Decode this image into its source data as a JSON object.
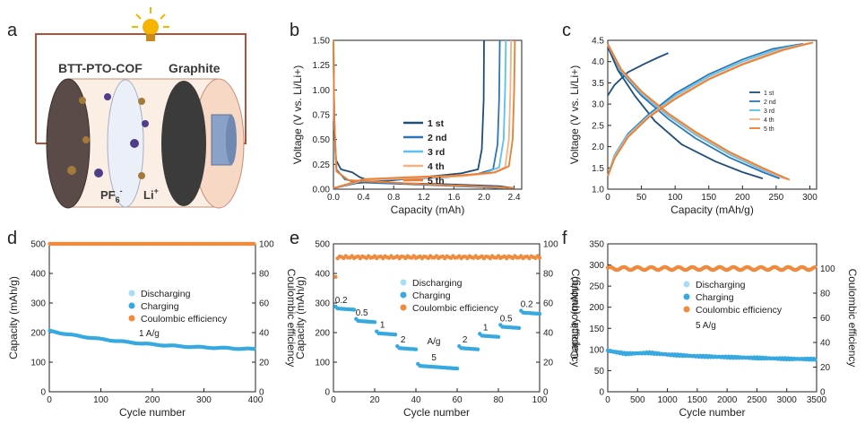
{
  "panel_labels": [
    "a",
    "b",
    "c",
    "d",
    "e",
    "f"
  ],
  "schematic": {
    "left_label": "BTT-PTO-COF",
    "right_label": "Graphite",
    "anion_label": "PF",
    "anion_sub": "6",
    "anion_sup": "-",
    "cation_label": "Li",
    "cation_sup": "+"
  },
  "chart_data": [
    {
      "panel": "b",
      "type": "line",
      "xlabel": "Capacity (mAh)",
      "ylabel": "Voltage (V vs. Li/Li+)",
      "xlim": [
        0,
        2.5
      ],
      "ylim": [
        0,
        1.5
      ],
      "xticks": [
        "0.0",
        "0.4",
        "0.8",
        "1.2",
        "1.6",
        "2.0",
        "2.4"
      ],
      "yticks": [
        "0.00",
        "0.25",
        "0.50",
        "0.75",
        "1.00",
        "1.25",
        "1.50"
      ],
      "legend_position": "center-right",
      "series": [
        {
          "name": "1 st",
          "color": "#1f4e79",
          "charge": [
            [
              0,
              0.01
            ],
            [
              0.3,
              0.06
            ],
            [
              0.8,
              0.09
            ],
            [
              1.3,
              0.13
            ],
            [
              1.7,
              0.16
            ],
            [
              1.92,
              0.2
            ],
            [
              1.97,
              0.4
            ],
            [
              1.995,
              0.9
            ],
            [
              2.0,
              1.5
            ]
          ],
          "discharge": [
            [
              0,
              1.5
            ],
            [
              0.01,
              0.8
            ],
            [
              0.03,
              0.3
            ],
            [
              0.1,
              0.2
            ],
            [
              0.25,
              0.17
            ],
            [
              0.35,
              0.12
            ],
            [
              0.5,
              0.08
            ],
            [
              0.9,
              0.06
            ],
            [
              1.5,
              0.05
            ],
            [
              2.2,
              0.03
            ],
            [
              2.4,
              0.01
            ]
          ]
        },
        {
          "name": "2 nd",
          "color": "#2e75b6",
          "charge": [
            [
              0,
              0.01
            ],
            [
              0.4,
              0.08
            ],
            [
              0.9,
              0.1
            ],
            [
              1.5,
              0.12
            ],
            [
              1.9,
              0.15
            ],
            [
              2.12,
              0.2
            ],
            [
              2.18,
              0.45
            ],
            [
              2.2,
              0.9
            ],
            [
              2.21,
              1.5
            ]
          ],
          "discharge": [
            [
              0,
              1.5
            ],
            [
              0.01,
              0.7
            ],
            [
              0.04,
              0.2
            ],
            [
              0.15,
              0.1
            ],
            [
              0.3,
              0.07
            ],
            [
              1.0,
              0.05
            ],
            [
              2.0,
              0.02
            ],
            [
              2.2,
              0.01
            ]
          ]
        },
        {
          "name": "3 rd",
          "color": "#5bc0eb",
          "charge": [
            [
              0,
              0.01
            ],
            [
              0.4,
              0.09
            ],
            [
              1.0,
              0.11
            ],
            [
              1.6,
              0.13
            ],
            [
              2.0,
              0.16
            ],
            [
              2.2,
              0.22
            ],
            [
              2.26,
              0.5
            ],
            [
              2.28,
              1.0
            ],
            [
              2.29,
              1.5
            ]
          ],
          "discharge": [
            [
              0,
              1.5
            ],
            [
              0.01,
              0.7
            ],
            [
              0.04,
              0.18
            ],
            [
              0.2,
              0.09
            ],
            [
              1.2,
              0.05
            ],
            [
              2.1,
              0.02
            ],
            [
              2.28,
              0.01
            ]
          ]
        },
        {
          "name": "4 th",
          "color": "#f4b183",
          "charge": [
            [
              0,
              0.01
            ],
            [
              0.4,
              0.09
            ],
            [
              1.0,
              0.11
            ],
            [
              1.7,
              0.13
            ],
            [
              2.1,
              0.16
            ],
            [
              2.28,
              0.22
            ],
            [
              2.33,
              0.5
            ],
            [
              2.35,
              1.0
            ],
            [
              2.36,
              1.5
            ]
          ],
          "discharge": [
            [
              0,
              1.5
            ],
            [
              0.01,
              0.7
            ],
            [
              0.04,
              0.18
            ],
            [
              0.2,
              0.09
            ],
            [
              1.2,
              0.05
            ],
            [
              2.2,
              0.02
            ],
            [
              2.35,
              0.01
            ]
          ]
        },
        {
          "name": "5 th",
          "color": "#ed7d31",
          "charge": [
            [
              0,
              0.01
            ],
            [
              0.4,
              0.1
            ],
            [
              1.0,
              0.12
            ],
            [
              1.7,
              0.14
            ],
            [
              2.15,
              0.17
            ],
            [
              2.33,
              0.23
            ],
            [
              2.38,
              0.5
            ],
            [
              2.4,
              1.0
            ],
            [
              2.41,
              1.5
            ]
          ],
          "discharge": [
            [
              0,
              1.5
            ],
            [
              0.01,
              0.7
            ],
            [
              0.04,
              0.18
            ],
            [
              0.2,
              0.09
            ],
            [
              1.2,
              0.05
            ],
            [
              2.2,
              0.02
            ],
            [
              2.4,
              0.01
            ]
          ]
        }
      ]
    },
    {
      "panel": "c",
      "type": "line",
      "xlabel": "Capacity (mAh/g)",
      "ylabel": "Voltage (V vs. Li/Li+)",
      "xlim": [
        0,
        310
      ],
      "ylim": [
        1.0,
        4.5
      ],
      "xticks": [
        "0",
        "50",
        "100",
        "150",
        "200",
        "250",
        "300"
      ],
      "yticks": [
        "1.0",
        "1.5",
        "2.0",
        "2.5",
        "3.0",
        "3.5",
        "4.0",
        "4.5"
      ],
      "legend_position": "right",
      "series": [
        {
          "name": "1 st",
          "color": "#1f4e79",
          "charge": [
            [
              0,
              3.2
            ],
            [
              10,
              3.45
            ],
            [
              30,
              3.75
            ],
            [
              55,
              3.95
            ],
            [
              75,
              4.1
            ],
            [
              90,
              4.2
            ]
          ],
          "discharge": [
            [
              0,
              4.35
            ],
            [
              15,
              3.8
            ],
            [
              40,
              3.2
            ],
            [
              70,
              2.6
            ],
            [
              110,
              2.05
            ],
            [
              160,
              1.65
            ],
            [
              200,
              1.4
            ],
            [
              230,
              1.25
            ]
          ]
        },
        {
          "name": "2 nd",
          "color": "#2e75b6",
          "charge": [
            [
              0,
              1.3
            ],
            [
              10,
              1.8
            ],
            [
              30,
              2.3
            ],
            [
              60,
              2.75
            ],
            [
              100,
              3.25
            ],
            [
              150,
              3.7
            ],
            [
              200,
              4.05
            ],
            [
              245,
              4.3
            ],
            [
              290,
              4.42
            ]
          ],
          "discharge": [
            [
              0,
              4.4
            ],
            [
              20,
              3.75
            ],
            [
              50,
              3.2
            ],
            [
              90,
              2.65
            ],
            [
              130,
              2.2
            ],
            [
              180,
              1.75
            ],
            [
              230,
              1.4
            ],
            [
              255,
              1.25
            ]
          ]
        },
        {
          "name": "3 rd",
          "color": "#5bc0eb",
          "charge": [
            [
              0,
              1.3
            ],
            [
              10,
              1.8
            ],
            [
              30,
              2.28
            ],
            [
              60,
              2.72
            ],
            [
              100,
              3.2
            ],
            [
              150,
              3.65
            ],
            [
              200,
              4.0
            ],
            [
              250,
              4.28
            ],
            [
              295,
              4.42
            ]
          ],
          "discharge": [
            [
              0,
              4.4
            ],
            [
              20,
              3.78
            ],
            [
              50,
              3.25
            ],
            [
              90,
              2.72
            ],
            [
              130,
              2.28
            ],
            [
              180,
              1.82
            ],
            [
              230,
              1.45
            ],
            [
              262,
              1.25
            ]
          ]
        },
        {
          "name": "4 th",
          "color": "#f4b183",
          "charge": [
            [
              0,
              1.3
            ],
            [
              10,
              1.75
            ],
            [
              30,
              2.25
            ],
            [
              60,
              2.7
            ],
            [
              100,
              3.15
            ],
            [
              150,
              3.6
            ],
            [
              200,
              3.95
            ],
            [
              255,
              4.27
            ],
            [
              300,
              4.44
            ]
          ],
          "discharge": [
            [
              0,
              4.4
            ],
            [
              20,
              3.8
            ],
            [
              50,
              3.28
            ],
            [
              90,
              2.76
            ],
            [
              130,
              2.32
            ],
            [
              180,
              1.86
            ],
            [
              230,
              1.48
            ],
            [
              266,
              1.23
            ]
          ]
        },
        {
          "name": "5 th",
          "color": "#ed7d31",
          "charge": [
            [
              0,
              1.3
            ],
            [
              10,
              1.72
            ],
            [
              30,
              2.22
            ],
            [
              60,
              2.68
            ],
            [
              100,
              3.12
            ],
            [
              150,
              3.58
            ],
            [
              200,
              3.93
            ],
            [
              260,
              4.27
            ],
            [
              305,
              4.45
            ]
          ],
          "discharge": [
            [
              0,
              4.42
            ],
            [
              20,
              3.82
            ],
            [
              50,
              3.3
            ],
            [
              90,
              2.78
            ],
            [
              130,
              2.35
            ],
            [
              180,
              1.88
            ],
            [
              230,
              1.5
            ],
            [
              270,
              1.22
            ]
          ]
        }
      ]
    },
    {
      "panel": "d",
      "type": "scatter",
      "xlabel": "Cycle number",
      "ylabel": "Capacity (mAh/g)",
      "y2label": "Coulombic efficiency",
      "xlim": [
        0,
        400
      ],
      "ylim": [
        0,
        500
      ],
      "y2lim": [
        0,
        100
      ],
      "xticks": [
        "0",
        "100",
        "200",
        "300",
        "400"
      ],
      "yticks": [
        "0",
        "100",
        "200",
        "300",
        "400",
        "500"
      ],
      "y2ticks": [
        "0",
        "20",
        "40",
        "60",
        "80",
        "100"
      ],
      "annotation": "1 A/g",
      "legend_position": "center",
      "legend": [
        "Discharging",
        "Charging",
        "Coulombic efficiency"
      ],
      "colors": {
        "discharging": "#a9dcf5",
        "charging": "#36a9e1",
        "ce": "#f08a3c"
      },
      "charging_trend": [
        [
          1,
          205
        ],
        [
          50,
          190
        ],
        [
          100,
          178
        ],
        [
          150,
          168
        ],
        [
          200,
          160
        ],
        [
          250,
          154
        ],
        [
          300,
          150
        ],
        [
          350,
          147
        ],
        [
          400,
          144
        ]
      ],
      "ce_value": 100
    },
    {
      "panel": "e",
      "type": "scatter",
      "xlabel": "Cycle number",
      "ylabel": "Capacity (mAh/g)",
      "y2label": "Coulombic efficiency",
      "xlim": [
        0,
        100
      ],
      "ylim": [
        0,
        500
      ],
      "y2lim": [
        0,
        100
      ],
      "xticks": [
        "0",
        "20",
        "40",
        "60",
        "80",
        "100"
      ],
      "yticks": [
        "0",
        "100",
        "200",
        "300",
        "400",
        "500"
      ],
      "y2ticks": [
        "0",
        "20",
        "40",
        "60",
        "80",
        "100"
      ],
      "annotation": "A/g",
      "legend_position": "top-center",
      "legend": [
        "Discharging",
        "Charging",
        "Coulombic efficiency"
      ],
      "colors": {
        "discharging": "#a9dcf5",
        "charging": "#36a9e1",
        "ce": "#f08a3c"
      },
      "rate_steps": [
        {
          "label": "0.2",
          "start": 1,
          "end": 10,
          "capacity": 282
        },
        {
          "label": "0.5",
          "start": 11,
          "end": 20,
          "capacity": 240
        },
        {
          "label": "1",
          "start": 21,
          "end": 30,
          "capacity": 198
        },
        {
          "label": "2",
          "start": 31,
          "end": 40,
          "capacity": 148
        },
        {
          "label": "5",
          "start": 41,
          "end": 60,
          "capacity": 88
        },
        {
          "label": "2",
          "start": 61,
          "end": 70,
          "capacity": 148
        },
        {
          "label": "1",
          "start": 71,
          "end": 80,
          "capacity": 190
        },
        {
          "label": "0.5",
          "start": 81,
          "end": 90,
          "capacity": 220
        },
        {
          "label": "0.2",
          "start": 91,
          "end": 100,
          "capacity": 268
        }
      ],
      "ce_value": 91
    },
    {
      "panel": "f",
      "type": "scatter",
      "xlabel": "Cycle number",
      "ylabel": "Capacity (mAh/g)",
      "y2label": "Coulombic efficiency",
      "xlim": [
        0,
        3500
      ],
      "ylim": [
        0,
        350
      ],
      "y2lim": [
        0,
        120
      ],
      "xticks": [
        "0",
        "500",
        "1000",
        "1500",
        "2000",
        "2500",
        "3000",
        "3500"
      ],
      "yticks": [
        "0",
        "50",
        "100",
        "150",
        "200",
        "250",
        "300",
        "350"
      ],
      "y2ticks": [
        "0",
        "20",
        "40",
        "60",
        "80",
        "100"
      ],
      "annotation": "5 A/g",
      "legend_position": "center",
      "legend": [
        "Discharging",
        "Charging",
        "Coulombic efficiency"
      ],
      "colors": {
        "discharging": "#a9dcf5",
        "charging": "#36a9e1",
        "ce": "#f08a3c"
      },
      "charging_trend": [
        [
          1,
          97
        ],
        [
          300,
          90
        ],
        [
          700,
          92
        ],
        [
          1000,
          88
        ],
        [
          1500,
          84
        ],
        [
          2000,
          82
        ],
        [
          2500,
          80
        ],
        [
          3000,
          78
        ],
        [
          3500,
          77
        ]
      ],
      "ce_value": 100
    }
  ]
}
